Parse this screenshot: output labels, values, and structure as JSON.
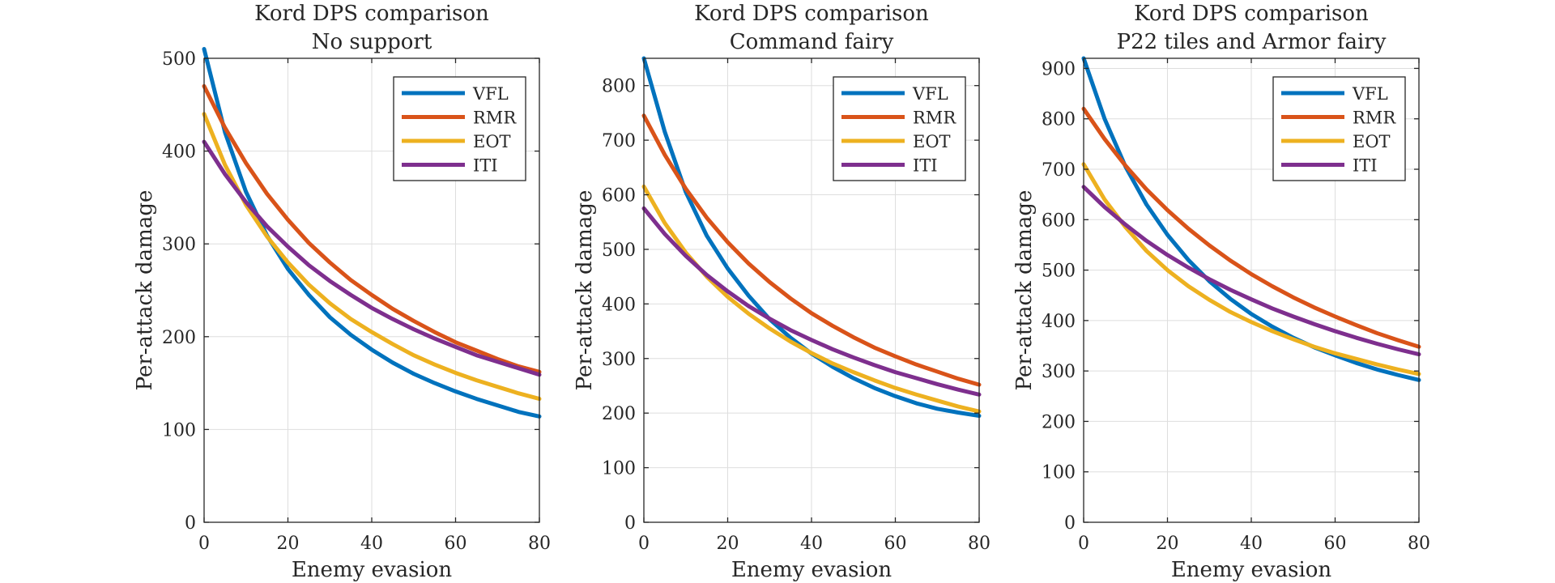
{
  "chart_data": [
    {
      "type": "line",
      "title": [
        "Kord DPS comparison",
        "No support"
      ],
      "xlabel": "Enemy evasion",
      "ylabel": "Per-attack damage",
      "xlim": [
        0,
        80
      ],
      "ylim": [
        0,
        500
      ],
      "xticks": [
        0,
        20,
        40,
        60,
        80
      ],
      "yticks": [
        0,
        100,
        200,
        300,
        400,
        500
      ],
      "grid": true,
      "legend": "top-right",
      "series": [
        {
          "name": "VFL",
          "color": "#0072BD",
          "x": [
            0,
            5,
            10,
            15,
            20,
            25,
            30,
            35,
            40,
            45,
            50,
            55,
            60,
            65,
            70,
            75,
            80
          ],
          "values": [
            510,
            420,
            356,
            309,
            273,
            245,
            221,
            202,
            186,
            172,
            160,
            150,
            141,
            133,
            126,
            119,
            114
          ]
        },
        {
          "name": "RMR",
          "color": "#D95319",
          "x": [
            0,
            5,
            10,
            15,
            20,
            25,
            30,
            35,
            40,
            45,
            50,
            55,
            60,
            65,
            70,
            75,
            80
          ],
          "values": [
            470,
            425,
            387,
            354,
            326,
            301,
            280,
            261,
            245,
            230,
            217,
            205,
            194,
            185,
            176,
            168,
            162
          ]
        },
        {
          "name": "EOT",
          "color": "#EDB120",
          "x": [
            0,
            5,
            10,
            15,
            20,
            25,
            30,
            35,
            40,
            45,
            50,
            55,
            60,
            65,
            70,
            75,
            80
          ],
          "values": [
            440,
            385,
            342,
            308,
            280,
            256,
            236,
            219,
            205,
            192,
            180,
            170,
            161,
            153,
            146,
            139,
            133
          ]
        },
        {
          "name": "ITI",
          "color": "#7E2F8E",
          "x": [
            0,
            5,
            10,
            15,
            20,
            25,
            30,
            35,
            40,
            45,
            50,
            55,
            60,
            65,
            70,
            75,
            80
          ],
          "values": [
            410,
            375,
            345,
            319,
            297,
            277,
            260,
            245,
            231,
            219,
            208,
            198,
            189,
            180,
            173,
            166,
            159
          ]
        }
      ]
    },
    {
      "type": "line",
      "title": [
        "Kord DPS comparison",
        "Command fairy"
      ],
      "xlabel": "Enemy evasion",
      "ylabel": "Per-attack damage",
      "xlim": [
        0,
        80
      ],
      "ylim": [
        0,
        850
      ],
      "xticks": [
        0,
        20,
        40,
        60,
        80
      ],
      "yticks": [
        0,
        100,
        200,
        300,
        400,
        500,
        600,
        700,
        800
      ],
      "grid": true,
      "legend": "top-right",
      "series": [
        {
          "name": "VFL",
          "color": "#0072BD",
          "x": [
            0,
            5,
            10,
            15,
            20,
            25,
            30,
            35,
            40,
            45,
            50,
            55,
            60,
            65,
            70,
            75,
            80
          ],
          "values": [
            850,
            715,
            605,
            525,
            465,
            415,
            372,
            338,
            309,
            285,
            264,
            246,
            231,
            218,
            208,
            201,
            195
          ]
        },
        {
          "name": "RMR",
          "color": "#D95319",
          "x": [
            0,
            5,
            10,
            15,
            20,
            25,
            30,
            35,
            40,
            45,
            50,
            55,
            60,
            65,
            70,
            75,
            80
          ],
          "values": [
            745,
            673,
            611,
            558,
            513,
            474,
            440,
            410,
            383,
            360,
            339,
            320,
            304,
            289,
            276,
            263,
            252
          ]
        },
        {
          "name": "EOT",
          "color": "#EDB120",
          "x": [
            0,
            5,
            10,
            15,
            20,
            25,
            30,
            35,
            40,
            45,
            50,
            55,
            60,
            65,
            70,
            75,
            80
          ],
          "values": [
            615,
            548,
            494,
            450,
            413,
            382,
            355,
            331,
            310,
            291,
            275,
            260,
            246,
            234,
            223,
            212,
            203
          ]
        },
        {
          "name": "ITI",
          "color": "#7E2F8E",
          "x": [
            0,
            5,
            10,
            15,
            20,
            25,
            30,
            35,
            40,
            45,
            50,
            55,
            60,
            65,
            70,
            75,
            80
          ],
          "values": [
            575,
            528,
            488,
            453,
            423,
            396,
            373,
            352,
            334,
            317,
            302,
            288,
            275,
            264,
            253,
            243,
            234
          ]
        }
      ]
    },
    {
      "type": "line",
      "title": [
        "Kord DPS comparison",
        "P22 tiles and Armor fairy"
      ],
      "xlabel": "Enemy evasion",
      "ylabel": "Per-attack damage",
      "xlim": [
        0,
        80
      ],
      "ylim": [
        0,
        920
      ],
      "xticks": [
        0,
        20,
        40,
        60,
        80
      ],
      "yticks": [
        0,
        100,
        200,
        300,
        400,
        500,
        600,
        700,
        800,
        900
      ],
      "grid": true,
      "legend": "top-right",
      "series": [
        {
          "name": "VFL",
          "color": "#0072BD",
          "x": [
            0,
            5,
            10,
            15,
            20,
            25,
            30,
            35,
            40,
            45,
            50,
            55,
            60,
            65,
            70,
            75,
            80
          ],
          "values": [
            920,
            800,
            705,
            630,
            570,
            520,
            478,
            443,
            413,
            388,
            366,
            347,
            331,
            316,
            303,
            292,
            282
          ]
        },
        {
          "name": "RMR",
          "color": "#D95319",
          "x": [
            0,
            5,
            10,
            15,
            20,
            25,
            30,
            35,
            40,
            45,
            50,
            55,
            60,
            65,
            70,
            75,
            80
          ],
          "values": [
            820,
            760,
            707,
            660,
            619,
            582,
            549,
            519,
            492,
            468,
            446,
            426,
            408,
            391,
            375,
            361,
            348
          ]
        },
        {
          "name": "EOT",
          "color": "#EDB120",
          "x": [
            0,
            5,
            10,
            15,
            20,
            25,
            30,
            35,
            40,
            45,
            50,
            55,
            60,
            65,
            70,
            75,
            80
          ],
          "values": [
            710,
            640,
            585,
            538,
            500,
            468,
            441,
            417,
            397,
            379,
            363,
            348,
            335,
            324,
            313,
            303,
            294
          ]
        },
        {
          "name": "ITI",
          "color": "#7E2F8E",
          "x": [
            0,
            5,
            10,
            15,
            20,
            25,
            30,
            35,
            40,
            45,
            50,
            55,
            60,
            65,
            70,
            75,
            80
          ],
          "values": [
            665,
            625,
            590,
            558,
            530,
            505,
            482,
            461,
            442,
            424,
            408,
            393,
            379,
            366,
            354,
            343,
            333
          ]
        }
      ]
    }
  ]
}
